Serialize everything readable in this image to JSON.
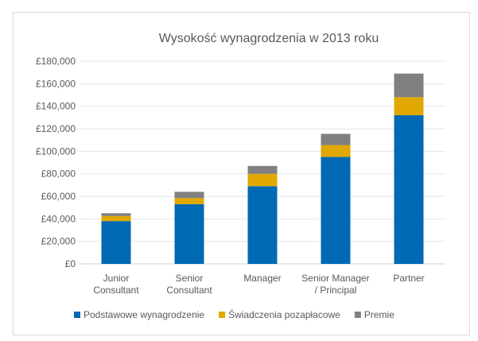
{
  "chart_data": {
    "type": "bar",
    "stacked": true,
    "title": "Wysokość wynagrodzenia w 2013 roku",
    "categories": [
      "Junior\nConsultant",
      "Senior\nConsultant",
      "Manager",
      "Senior Manager\n/ Principal",
      "Partner"
    ],
    "series": [
      {
        "name": "Podstawowe wynagrodzenie",
        "color": "#0069B4",
        "values": [
          38000,
          53000,
          69000,
          95000,
          132000
        ]
      },
      {
        "name": "Świadczenia pozapłacowe",
        "color": "#E0A800",
        "values": [
          4500,
          5500,
          11000,
          10500,
          16000
        ]
      },
      {
        "name": "Premie",
        "color": "#808080",
        "values": [
          2500,
          5500,
          7000,
          10000,
          21000
        ]
      }
    ],
    "ylim": [
      0,
      180000
    ],
    "yticks": [
      0,
      20000,
      40000,
      60000,
      80000,
      100000,
      120000,
      140000,
      160000,
      180000
    ],
    "ytick_labels": [
      "£0",
      "£20,000",
      "£40,000",
      "£60,000",
      "£80,000",
      "£100,000",
      "£120,000",
      "£140,000",
      "£160,000",
      "£180,000"
    ],
    "grid": true,
    "legend_position": "bottom"
  }
}
